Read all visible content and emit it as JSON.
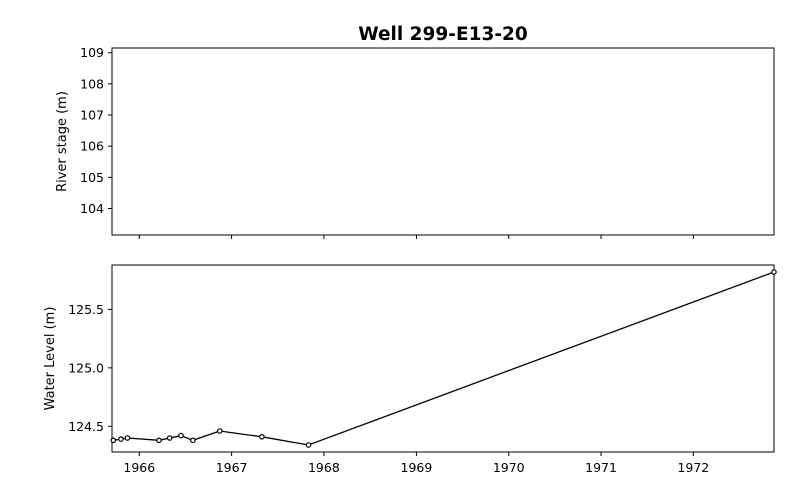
{
  "chart_data": [
    {
      "type": "line",
      "title": "Well 299-E13-20",
      "xlabel": "",
      "ylabel": "River stage (m)",
      "xlim": [
        "1965-09-15",
        "1972-11-15"
      ],
      "ylim": [
        103.15,
        109.15
      ],
      "yticks": [
        104,
        105,
        106,
        107,
        108,
        109
      ],
      "grid": false,
      "series": []
    },
    {
      "type": "line",
      "title": "",
      "xlabel": "",
      "ylabel": "Water Level (m)",
      "xlim": [
        "1965-09-15",
        "1972-11-15"
      ],
      "ylim": [
        124.28,
        125.88
      ],
      "xticks": [
        "1966",
        "1967",
        "1968",
        "1969",
        "1970",
        "1971",
        "1972"
      ],
      "yticks": [
        "124.5",
        "125.0",
        "125.5"
      ],
      "grid": false,
      "series": [
        {
          "points": [
            {
              "x": "1965-09-20",
              "y": 124.38
            },
            {
              "x": "1965-10-20",
              "y": 124.39
            },
            {
              "x": "1965-11-15",
              "y": 124.4
            },
            {
              "x": "1966-03-20",
              "y": 124.38
            },
            {
              "x": "1966-05-01",
              "y": 124.4
            },
            {
              "x": "1966-06-15",
              "y": 124.42
            },
            {
              "x": "1966-08-01",
              "y": 124.38
            },
            {
              "x": "1966-11-15",
              "y": 124.46
            },
            {
              "x": "1967-05-01",
              "y": 124.41
            },
            {
              "x": "1967-11-01",
              "y": 124.34
            },
            {
              "x": "1972-11-15",
              "y": 125.82
            }
          ]
        }
      ]
    }
  ],
  "colors": {
    "line": "#000000",
    "axes": "#000000",
    "background": "#ffffff"
  }
}
